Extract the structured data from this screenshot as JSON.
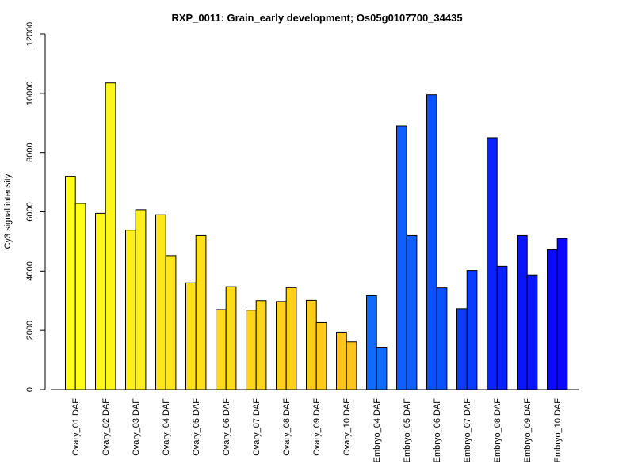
{
  "chart_data": {
    "type": "bar",
    "title": "RXP_0011: Grain_early development; Os05g0107700_34435",
    "xlabel": "",
    "ylabel": "Cy3 signal intensity",
    "ylim": [
      0,
      12000
    ],
    "yticks": [
      0,
      2000,
      4000,
      6000,
      8000,
      10000,
      12000
    ],
    "grid": false,
    "legend": "none",
    "categories": [
      "Ovary_01 DAF",
      "Ovary_02 DAF",
      "Ovary_03 DAF",
      "Ovary_04 DAF",
      "Ovary_05 DAF",
      "Ovary_06 DAF",
      "Ovary_07 DAF",
      "Ovary_08 DAF",
      "Ovary_09 DAF",
      "Ovary_10 DAF",
      "Embryo_04 DAF",
      "Embryo_05 DAF",
      "Embryo_06 DAF",
      "Embryo_07 DAF",
      "Embryo_08 DAF",
      "Embryo_09 DAF",
      "Embryo_10 DAF"
    ],
    "series": [
      {
        "values": [
          7200,
          5950,
          5380,
          5900,
          3600,
          2700,
          2680,
          2970,
          3010,
          1940,
          3170,
          8900,
          9950,
          2730,
          8500,
          5200,
          4720
        ]
      },
      {
        "values": [
          6280,
          10350,
          6070,
          4520,
          5200,
          3470,
          3000,
          3440,
          2260,
          1610,
          1430,
          5200,
          3430,
          4020,
          4160,
          3870,
          5100
        ]
      }
    ],
    "category_colors": [
      "#FFFF1A",
      "#FFF61A",
      "#FFEE1A",
      "#FFE61A",
      "#FFE01A",
      "#FFDB1A",
      "#FFD51A",
      "#FFD11A",
      "#FFCB1A",
      "#FFC51A",
      "#0F6AFF",
      "#0F5FFF",
      "#0A52FF",
      "#0A3DFF",
      "#0A22FF",
      "#0A14FF",
      "#0A08FF"
    ]
  }
}
